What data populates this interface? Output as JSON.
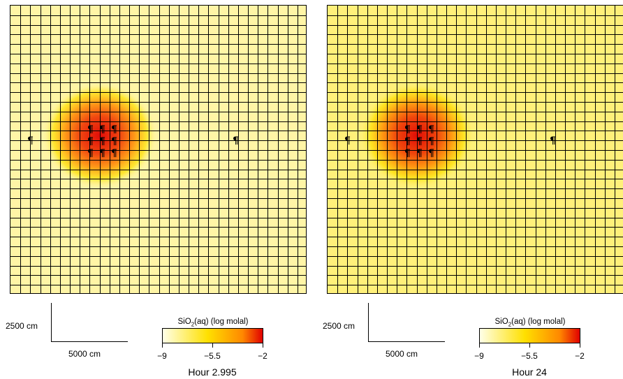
{
  "panels": [
    {
      "scale_vertical_label": "2500 cm",
      "scale_horizontal_label": "5000 cm",
      "legend_title_prefix": "SiO",
      "legend_title_sub": "2",
      "legend_title_suffix": "(aq) (log molal)",
      "ticks": [
        "−9",
        "−5.5",
        "−2"
      ],
      "hour_label": "Hour 2.995",
      "marker_glyph": "¶",
      "background_color": "#fff5a6",
      "plume_intensity": 0.95
    },
    {
      "scale_vertical_label": "2500 cm",
      "scale_horizontal_label": "5000 cm",
      "legend_title_prefix": "SiO",
      "legend_title_sub": "2",
      "legend_title_suffix": "(aq) (log molal)",
      "ticks": [
        "−9",
        "−5.5",
        "−2"
      ],
      "hour_label": "Hour 24",
      "marker_glyph": "¶",
      "background_color": "#fff07a",
      "plume_intensity": 0.95
    }
  ],
  "colors": {
    "cmap_low": "#ffffe8",
    "cmap_mid": "#ffe000",
    "cmap_high": "#ff8800",
    "cmap_top": "#e00000",
    "grid_line": "#000000"
  }
}
